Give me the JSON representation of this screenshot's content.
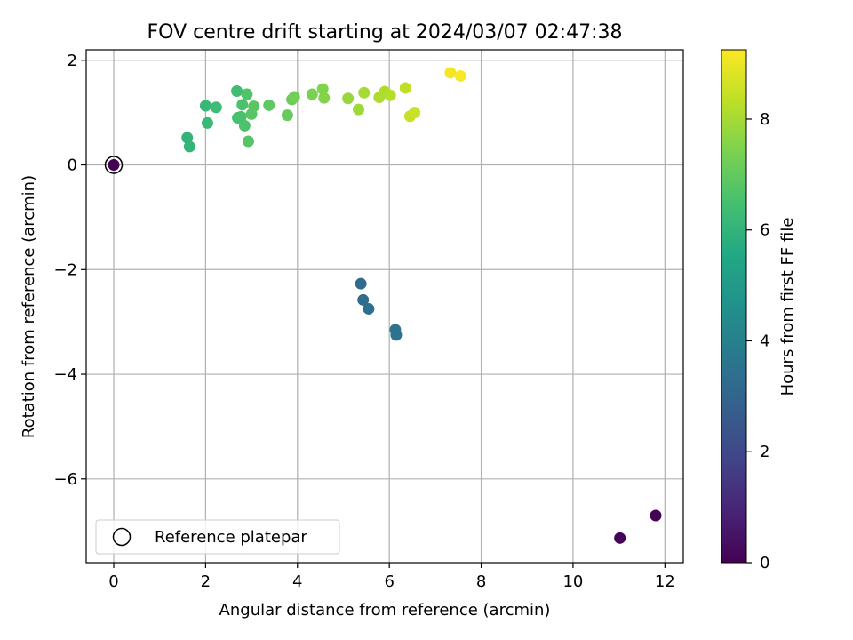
{
  "chart_data": {
    "type": "scatter",
    "title": "FOV centre drift starting at 2024/03/07 02:47:38",
    "xlabel": "Angular distance from reference (arcmin)",
    "ylabel": "Rotation from reference (arcmin)",
    "xlim": [
      -0.6,
      12.4
    ],
    "ylim": [
      -7.6,
      2.2
    ],
    "xticks": [
      0,
      2,
      4,
      6,
      8,
      10,
      12
    ],
    "yticks": [
      -6,
      -4,
      -2,
      0,
      2
    ],
    "grid": true,
    "legend": {
      "position": "lower-left",
      "entries": [
        "Reference platepar"
      ]
    },
    "colorbar": {
      "label": "Hours from first FF file",
      "min": 0,
      "max": 9.25,
      "ticks": [
        0,
        2,
        4,
        6,
        8
      ],
      "colormap": "viridis"
    },
    "reference_point": {
      "x": 0,
      "y": 0
    },
    "points": [
      {
        "x": 0.0,
        "y": 0.0,
        "c": 0.0
      },
      {
        "x": 11.8,
        "y": -6.7,
        "c": 0.05
      },
      {
        "x": 11.02,
        "y": -7.13,
        "c": 0.1
      },
      {
        "x": 5.38,
        "y": -2.27,
        "c": 3.2
      },
      {
        "x": 5.43,
        "y": -2.58,
        "c": 3.3
      },
      {
        "x": 5.55,
        "y": -2.75,
        "c": 3.35
      },
      {
        "x": 6.13,
        "y": -3.15,
        "c": 3.5
      },
      {
        "x": 6.15,
        "y": -3.25,
        "c": 3.55
      },
      {
        "x": 1.6,
        "y": 0.52,
        "c": 6.0
      },
      {
        "x": 1.65,
        "y": 0.35,
        "c": 6.05
      },
      {
        "x": 2.0,
        "y": 1.13,
        "c": 6.15
      },
      {
        "x": 2.04,
        "y": 0.8,
        "c": 6.2
      },
      {
        "x": 2.23,
        "y": 1.1,
        "c": 6.3
      },
      {
        "x": 2.68,
        "y": 1.41,
        "c": 6.4
      },
      {
        "x": 2.7,
        "y": 0.9,
        "c": 6.5
      },
      {
        "x": 2.77,
        "y": 0.92,
        "c": 6.55
      },
      {
        "x": 2.8,
        "y": 1.15,
        "c": 6.6
      },
      {
        "x": 2.85,
        "y": 0.75,
        "c": 6.65
      },
      {
        "x": 2.9,
        "y": 1.35,
        "c": 6.7
      },
      {
        "x": 2.93,
        "y": 0.45,
        "c": 6.75
      },
      {
        "x": 3.0,
        "y": 0.97,
        "c": 6.8
      },
      {
        "x": 3.05,
        "y": 1.12,
        "c": 6.85
      },
      {
        "x": 3.38,
        "y": 1.14,
        "c": 6.95
      },
      {
        "x": 3.78,
        "y": 0.95,
        "c": 7.05
      },
      {
        "x": 3.88,
        "y": 1.25,
        "c": 7.15
      },
      {
        "x": 3.93,
        "y": 1.3,
        "c": 7.25
      },
      {
        "x": 4.32,
        "y": 1.35,
        "c": 7.4
      },
      {
        "x": 4.55,
        "y": 1.45,
        "c": 7.5
      },
      {
        "x": 4.58,
        "y": 1.28,
        "c": 7.55
      },
      {
        "x": 5.1,
        "y": 1.27,
        "c": 7.8
      },
      {
        "x": 5.33,
        "y": 1.06,
        "c": 7.9
      },
      {
        "x": 5.45,
        "y": 1.38,
        "c": 8.0
      },
      {
        "x": 5.78,
        "y": 1.29,
        "c": 8.1
      },
      {
        "x": 5.9,
        "y": 1.4,
        "c": 8.15
      },
      {
        "x": 6.02,
        "y": 1.33,
        "c": 8.2
      },
      {
        "x": 6.35,
        "y": 1.47,
        "c": 8.35
      },
      {
        "x": 6.45,
        "y": 0.93,
        "c": 8.45
      },
      {
        "x": 6.55,
        "y": 1.0,
        "c": 8.5
      },
      {
        "x": 7.33,
        "y": 1.76,
        "c": 9.1
      },
      {
        "x": 7.55,
        "y": 1.7,
        "c": 9.2
      }
    ]
  }
}
